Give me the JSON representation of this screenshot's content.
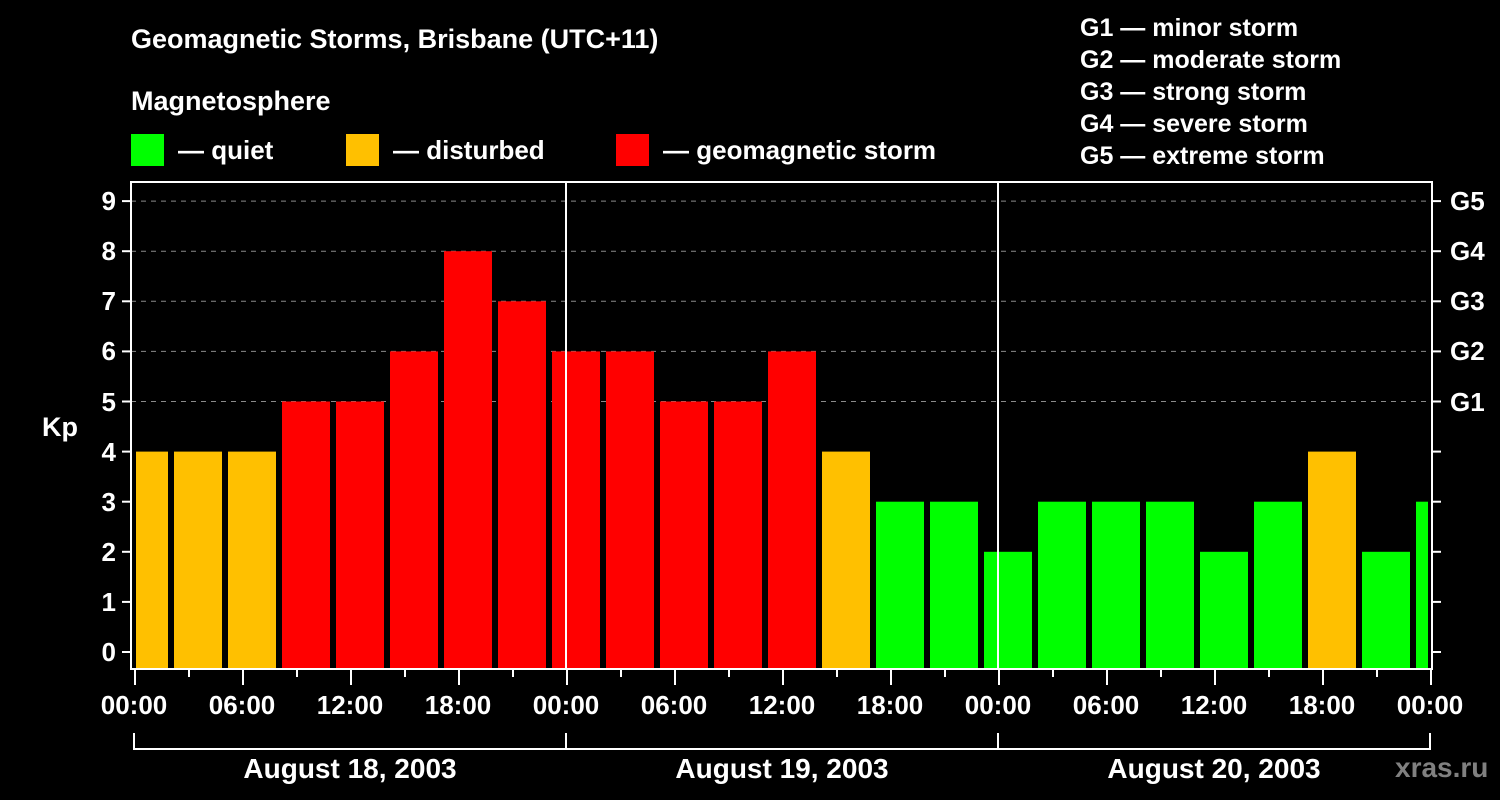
{
  "header": {
    "title": "Geomagnetic Storms, Brisbane (UTC+11)",
    "subtitle": "Magnetosphere"
  },
  "legend": [
    {
      "label": "— quiet",
      "color": "#00ff00"
    },
    {
      "label": "— disturbed",
      "color": "#ffc000"
    },
    {
      "label": "— geomagnetic storm",
      "color": "#ff0000"
    }
  ],
  "g_scale_legend": [
    "G1 — minor storm",
    "G2 — moderate storm",
    "G3 — strong storm",
    "G4 — severe storm",
    "G5 — extreme storm"
  ],
  "watermark": "xras.ru",
  "chart_data": {
    "type": "bar",
    "title": "Geomagnetic Storms, Brisbane (UTC+11)",
    "subtitle": "Magnetosphere",
    "ylabel": "Kp",
    "xlabel": "",
    "ylim": [
      0,
      9
    ],
    "yticks": [
      0,
      1,
      2,
      3,
      4,
      5,
      6,
      7,
      8,
      9
    ],
    "right_axis_labels": [
      {
        "kp": 5,
        "label": "G1"
      },
      {
        "kp": 6,
        "label": "G2"
      },
      {
        "kp": 7,
        "label": "G3"
      },
      {
        "kp": 8,
        "label": "G4"
      },
      {
        "kp": 9,
        "label": "G5"
      }
    ],
    "grid": "dashed horizontal at Kp 5–9",
    "xtick_labels": [
      "00:00",
      "06:00",
      "12:00",
      "18:00",
      "00:00",
      "06:00",
      "12:00",
      "18:00",
      "00:00",
      "06:00",
      "12:00",
      "18:00",
      "00:00"
    ],
    "day_labels": [
      "August 18, 2003",
      "August 19, 2003",
      "August 20, 2003"
    ],
    "interval_hours": 3,
    "categories": [
      "Aug 18 00:00",
      "Aug 18 03:00",
      "Aug 18 06:00",
      "Aug 18 09:00",
      "Aug 18 12:00",
      "Aug 18 15:00",
      "Aug 18 18:00",
      "Aug 18 21:00",
      "Aug 19 00:00",
      "Aug 19 03:00",
      "Aug 19 06:00",
      "Aug 19 09:00",
      "Aug 19 12:00",
      "Aug 19 15:00",
      "Aug 19 18:00",
      "Aug 19 21:00",
      "Aug 20 00:00",
      "Aug 20 03:00",
      "Aug 20 06:00",
      "Aug 20 09:00",
      "Aug 20 12:00",
      "Aug 20 15:00",
      "Aug 20 18:00",
      "Aug 20 21:00",
      "Aug 21 00:00"
    ],
    "values": [
      4,
      4,
      4,
      5,
      5,
      6,
      8,
      7,
      6,
      6,
      5,
      5,
      6,
      4,
      3,
      3,
      2,
      3,
      3,
      3,
      2,
      3,
      4,
      2,
      3
    ],
    "color_rule": {
      "quiet": "Kp<=3 #00ff00",
      "disturbed": "Kp=4 #ffc000",
      "storm": "Kp>=5 #ff0000"
    },
    "legend_position": "top"
  }
}
